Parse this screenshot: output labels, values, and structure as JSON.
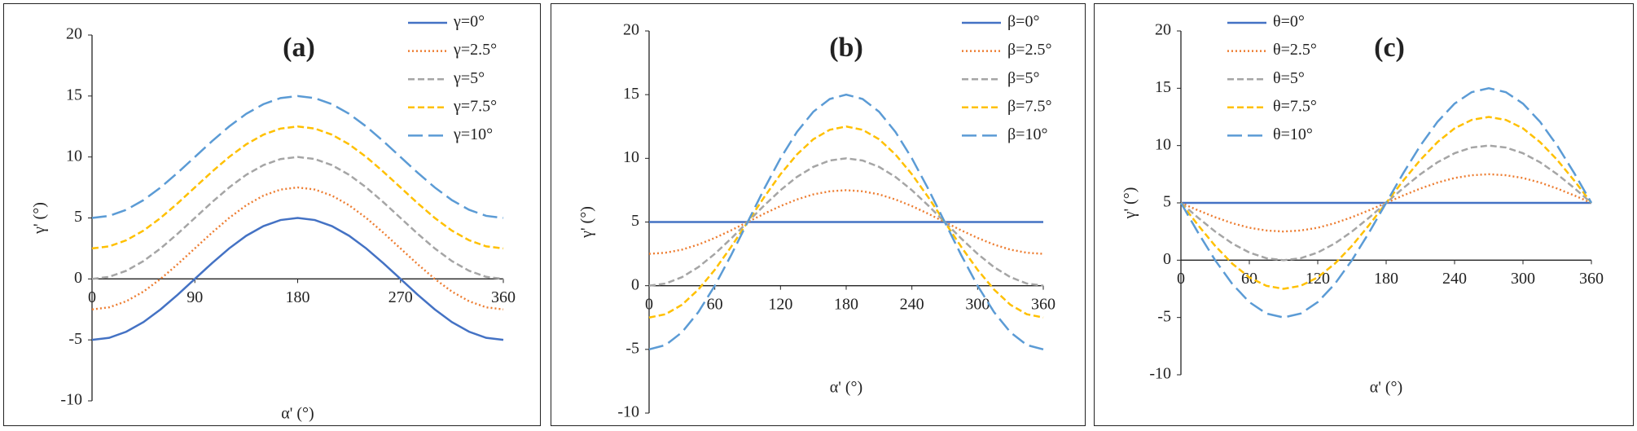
{
  "chart_data": [
    {
      "type": "line",
      "title": "(a)",
      "x_label": "α' (°)",
      "y_label": "γ' (°)",
      "x": [
        0,
        15,
        30,
        45,
        60,
        75,
        90,
        105,
        120,
        135,
        150,
        165,
        180,
        195,
        210,
        225,
        240,
        255,
        270,
        285,
        300,
        315,
        330,
        345,
        360
      ],
      "xlim": [
        0,
        360
      ],
      "xticks": [
        0,
        90,
        180,
        270,
        360
      ],
      "ylim": [
        -10,
        20
      ],
      "yticks": [
        -10,
        -5,
        0,
        5,
        10,
        15,
        20
      ],
      "legend": "top-right",
      "series": [
        {
          "name": "γ=0°",
          "color": "#4472c4",
          "style": "solid",
          "values": [
            -5,
            -4.83,
            -4.33,
            -3.54,
            -2.5,
            -1.29,
            0,
            1.29,
            2.5,
            3.54,
            4.33,
            4.83,
            5,
            4.83,
            4.33,
            3.54,
            2.5,
            1.29,
            0,
            -1.29,
            -2.5,
            -3.54,
            -4.33,
            -4.83,
            -5
          ]
        },
        {
          "name": "γ=2.5°",
          "color": "#ed7d31",
          "style": "dotted",
          "values": [
            -2.5,
            -2.33,
            -1.83,
            -1.04,
            0,
            1.21,
            2.5,
            3.79,
            5,
            6.04,
            6.83,
            7.33,
            7.5,
            7.33,
            6.83,
            6.04,
            5,
            3.79,
            2.5,
            1.21,
            0,
            -1.04,
            -1.83,
            -2.33,
            -2.5
          ]
        },
        {
          "name": "γ=5°",
          "color": "#a5a5a5",
          "style": "dashed",
          "values": [
            0,
            0.17,
            0.67,
            1.46,
            2.5,
            3.71,
            5,
            6.29,
            7.5,
            8.54,
            9.33,
            9.83,
            10,
            9.83,
            9.33,
            8.54,
            7.5,
            6.29,
            5,
            3.71,
            2.5,
            1.46,
            0.67,
            0.17,
            0
          ]
        },
        {
          "name": "γ=7.5°",
          "color": "#ffc000",
          "style": "dashed",
          "values": [
            2.5,
            2.67,
            3.17,
            3.96,
            5,
            6.21,
            7.5,
            8.79,
            10,
            11.04,
            11.83,
            12.33,
            12.5,
            12.33,
            11.83,
            11.04,
            10,
            8.79,
            7.5,
            6.21,
            5,
            3.96,
            3.17,
            2.67,
            2.5
          ]
        },
        {
          "name": "γ=10°",
          "color": "#5b9bd5",
          "style": "longdash",
          "values": [
            5,
            5.17,
            5.67,
            6.46,
            7.5,
            8.71,
            10,
            11.29,
            12.5,
            13.54,
            14.33,
            14.83,
            15,
            14.83,
            14.33,
            13.54,
            12.5,
            11.29,
            10,
            8.71,
            7.5,
            6.46,
            5.67,
            5.17,
            5
          ]
        }
      ]
    },
    {
      "type": "line",
      "title": "(b)",
      "x_label": "α' (°)",
      "y_label": "γ' (°)",
      "x": [
        0,
        15,
        30,
        45,
        60,
        75,
        90,
        105,
        120,
        135,
        150,
        165,
        180,
        195,
        210,
        225,
        240,
        255,
        270,
        285,
        300,
        315,
        330,
        345,
        360
      ],
      "xlim": [
        0,
        360
      ],
      "xticks": [
        0,
        60,
        120,
        180,
        240,
        300,
        360
      ],
      "ylim": [
        -10,
        20
      ],
      "yticks": [
        -10,
        -5,
        0,
        5,
        10,
        15,
        20
      ],
      "legend": "top-right",
      "series": [
        {
          "name": "β=0°",
          "color": "#4472c4",
          "style": "solid",
          "values": [
            5,
            5,
            5,
            5,
            5,
            5,
            5,
            5,
            5,
            5,
            5,
            5,
            5,
            5,
            5,
            5,
            5,
            5,
            5,
            5,
            5,
            5,
            5,
            5,
            5
          ]
        },
        {
          "name": "β=2.5°",
          "color": "#ed7d31",
          "style": "dotted",
          "values": [
            2.5,
            2.59,
            2.83,
            3.23,
            3.75,
            4.35,
            5,
            5.65,
            6.25,
            6.77,
            7.17,
            7.41,
            7.5,
            7.41,
            7.17,
            6.77,
            6.25,
            5.65,
            5,
            4.35,
            3.75,
            3.23,
            2.83,
            2.59,
            2.5
          ]
        },
        {
          "name": "β=5°",
          "color": "#a5a5a5",
          "style": "dashed",
          "values": [
            0,
            0.17,
            0.67,
            1.46,
            2.5,
            3.71,
            5,
            6.29,
            7.5,
            8.54,
            9.33,
            9.83,
            10,
            9.83,
            9.33,
            8.54,
            7.5,
            6.29,
            5,
            3.71,
            2.5,
            1.46,
            0.67,
            0.17,
            0
          ]
        },
        {
          "name": "β=7.5°",
          "color": "#ffc000",
          "style": "dashed",
          "values": [
            -2.5,
            -2.24,
            -1.5,
            -0.3,
            1.25,
            3.06,
            5,
            6.94,
            8.75,
            10.3,
            11.5,
            12.24,
            12.5,
            12.24,
            11.5,
            10.3,
            8.75,
            6.94,
            5,
            3.06,
            1.25,
            -0.3,
            -1.5,
            -2.24,
            -2.5
          ]
        },
        {
          "name": "β=10°",
          "color": "#5b9bd5",
          "style": "longdash",
          "values": [
            -5,
            -4.66,
            -3.66,
            -2.07,
            0,
            2.41,
            5,
            7.59,
            10,
            12.07,
            13.66,
            14.66,
            15,
            14.66,
            13.66,
            12.07,
            10,
            7.59,
            5,
            2.41,
            0,
            -2.07,
            -3.66,
            -4.66,
            -5
          ]
        }
      ]
    },
    {
      "type": "line",
      "title": "(c)",
      "x_label": "α' (°)",
      "y_label": "γ' (°)",
      "x": [
        0,
        15,
        30,
        45,
        60,
        75,
        90,
        105,
        120,
        135,
        150,
        165,
        180,
        195,
        210,
        225,
        240,
        255,
        270,
        285,
        300,
        315,
        330,
        345,
        360
      ],
      "xlim": [
        0,
        360
      ],
      "xticks": [
        0,
        60,
        120,
        180,
        240,
        300,
        360
      ],
      "ylim": [
        -10,
        20
      ],
      "yticks": [
        -10,
        -5,
        0,
        5,
        10,
        15,
        20
      ],
      "legend": "top-left",
      "series": [
        {
          "name": "θ=0°",
          "color": "#4472c4",
          "style": "solid",
          "values": [
            5,
            5,
            5,
            5,
            5,
            5,
            5,
            5,
            5,
            5,
            5,
            5,
            5,
            5,
            5,
            5,
            5,
            5,
            5,
            5,
            5,
            5,
            5,
            5,
            5
          ]
        },
        {
          "name": "θ=2.5°",
          "color": "#ed7d31",
          "style": "dotted",
          "values": [
            5,
            4.35,
            3.75,
            3.23,
            2.83,
            2.59,
            2.5,
            2.59,
            2.83,
            3.23,
            3.75,
            4.35,
            5,
            5.65,
            6.25,
            6.77,
            7.17,
            7.41,
            7.5,
            7.41,
            7.17,
            6.77,
            6.25,
            5.65,
            5
          ]
        },
        {
          "name": "θ=5°",
          "color": "#a5a5a5",
          "style": "dashed",
          "values": [
            5,
            3.71,
            2.5,
            1.46,
            0.67,
            0.17,
            0,
            0.17,
            0.67,
            1.46,
            2.5,
            3.71,
            5,
            6.29,
            7.5,
            8.54,
            9.33,
            9.83,
            10,
            9.83,
            9.33,
            8.54,
            7.5,
            6.29,
            5
          ]
        },
        {
          "name": "θ=7.5°",
          "color": "#ffc000",
          "style": "dashed",
          "values": [
            5,
            3.06,
            1.25,
            -0.3,
            -1.5,
            -2.24,
            -2.5,
            -2.24,
            -1.5,
            -0.3,
            1.25,
            3.06,
            5,
            6.94,
            8.75,
            10.3,
            11.5,
            12.24,
            12.5,
            12.24,
            11.5,
            10.3,
            8.75,
            6.94,
            5
          ]
        },
        {
          "name": "θ=10°",
          "color": "#5b9bd5",
          "style": "longdash",
          "values": [
            5,
            2.41,
            0,
            -2.07,
            -3.66,
            -4.66,
            -5,
            -4.66,
            -3.66,
            -2.07,
            0,
            2.41,
            5,
            7.59,
            10,
            12.07,
            13.66,
            14.66,
            15,
            14.66,
            13.66,
            12.07,
            10,
            7.59,
            5
          ]
        }
      ]
    }
  ]
}
